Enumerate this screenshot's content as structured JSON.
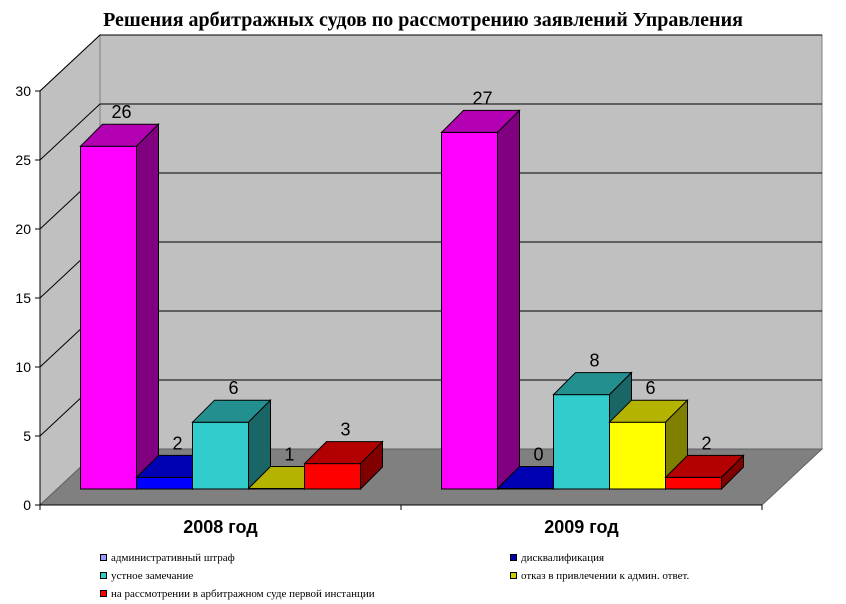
{
  "chart_data": {
    "type": "bar",
    "title": "Решения арбитражных судов по рассмотрению заявлений  Управления",
    "categories": [
      "2008 год",
      "2009 год"
    ],
    "series": [
      {
        "name": "административный штраф",
        "values": [
          26,
          27
        ],
        "color": "#FF00FF"
      },
      {
        "name": "дисквалификация",
        "values": [
          2,
          0
        ],
        "color": "#0000FF"
      },
      {
        "name": "устное замечание",
        "values": [
          6,
          8
        ],
        "color": "#33CCCC"
      },
      {
        "name": "отказ в привлечении к админ. ответ.",
        "values": [
          1,
          6
        ],
        "color": "#FFFF00"
      },
      {
        "name": "на рассмотрении в арбитражном суде первой инстанции",
        "values": [
          3,
          2
        ],
        "color": "#FF0000"
      }
    ],
    "ylim": [
      0,
      30
    ],
    "yticks": [
      0,
      5,
      10,
      15,
      20,
      25,
      30
    ],
    "grid": true,
    "legend_position": "bottom",
    "three_d": true
  },
  "legend_swatch_colors": [
    "#9999FF",
    "#0000AA",
    "#33CCCC",
    "#CCCC00",
    "#FF0000"
  ]
}
